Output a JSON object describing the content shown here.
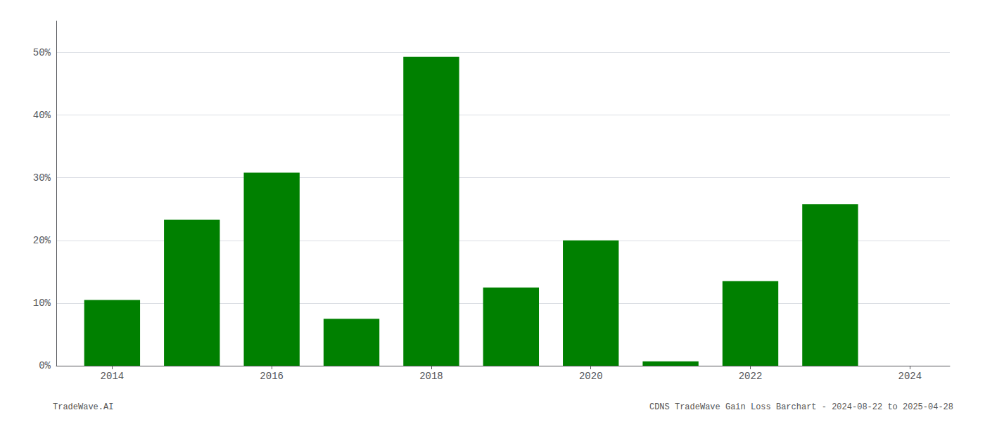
{
  "chart_data": {
    "type": "bar",
    "x": [
      2014,
      2015,
      2016,
      2017,
      2018,
      2019,
      2020,
      2021,
      2022,
      2023
    ],
    "values": [
      0.105,
      0.233,
      0.308,
      0.075,
      0.493,
      0.125,
      0.2,
      0.007,
      0.135,
      0.258
    ],
    "color": "#008000",
    "xlim": [
      2013.3,
      2024.5
    ],
    "xticks": [
      2014,
      2016,
      2018,
      2020,
      2022,
      2024
    ],
    "ylim": [
      0,
      0.55
    ],
    "yticks": [
      {
        "value": 0.0,
        "label": "0%"
      },
      {
        "value": 0.1,
        "label": "10%"
      },
      {
        "value": 0.2,
        "label": "20%"
      },
      {
        "value": 0.3,
        "label": "30%"
      },
      {
        "value": 0.4,
        "label": "40%"
      },
      {
        "value": 0.5,
        "label": "50%"
      }
    ],
    "grid": true,
    "annotations": [
      "TradeWave.AI",
      "CDNS TradeWave Gain Loss Barchart - 2024-08-22 to 2025-04-28"
    ]
  }
}
